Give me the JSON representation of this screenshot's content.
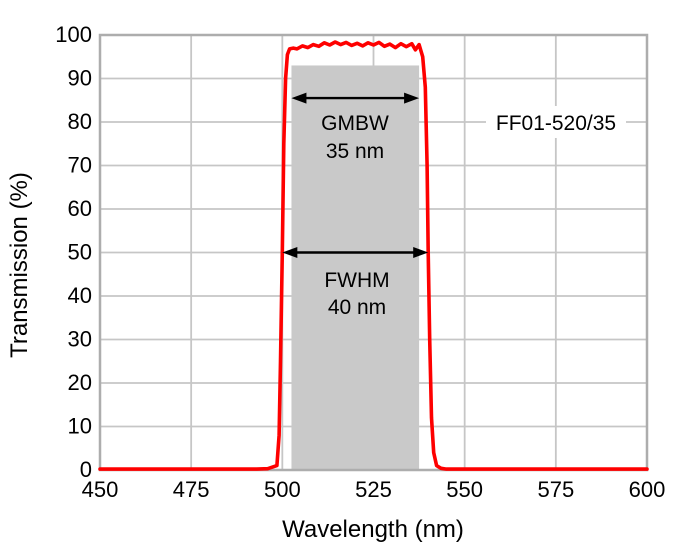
{
  "chart_data": {
    "type": "line",
    "title": "",
    "xlabel": "Wavelength (nm)",
    "ylabel": "Transmission (%)",
    "xlim": [
      450,
      600
    ],
    "ylim": [
      0,
      100
    ],
    "x_ticks": [
      450,
      475,
      500,
      525,
      550,
      575,
      600
    ],
    "y_ticks": [
      0,
      10,
      20,
      30,
      40,
      50,
      60,
      70,
      80,
      90,
      100
    ],
    "grid": true,
    "legend": "none",
    "colors": {
      "curve": "#fe0000",
      "band": "#c9c9c9",
      "grid": "#c6c6c6",
      "frame": "#adadad",
      "text": "#000000",
      "arrow": "#000000"
    },
    "series": [
      {
        "name": "FF01-520/35 transmission",
        "color": "#fe0000",
        "x": [
          450,
          470,
          485,
          493,
          496,
          498.5,
          499.1,
          499.5,
          500,
          500.4,
          500.9,
          501.4,
          502,
          503,
          504,
          505.5,
          507,
          508.5,
          510,
          511.5,
          513,
          514.5,
          516,
          517.5,
          519,
          520.5,
          522,
          523.5,
          525,
          526.5,
          528,
          529.5,
          531,
          532.5,
          534,
          535.5,
          536.5,
          537.5,
          538.5,
          539.2,
          539.7,
          540,
          540.4,
          540.9,
          541.5,
          542.3,
          543.5,
          545,
          550,
          560,
          580,
          600
        ],
        "y": [
          0.2,
          0.2,
          0.2,
          0.2,
          0.3,
          1,
          8,
          25,
          50,
          75,
          90,
          95.5,
          96.8,
          97.0,
          96.8,
          97.5,
          97.1,
          97.8,
          97.4,
          98.2,
          97.7,
          98.4,
          97.8,
          98.3,
          97.6,
          98.1,
          97.5,
          98.2,
          97.7,
          98.3,
          97.4,
          97.9,
          97.1,
          98.0,
          97.3,
          98.0,
          96.6,
          97.8,
          95,
          88,
          70,
          50,
          30,
          12,
          4,
          1,
          0.4,
          0.2,
          0.2,
          0.2,
          0.2,
          0.2
        ]
      }
    ],
    "shaded_region": {
      "meaning": "GMBW band",
      "x_start": 502.5,
      "x_end": 537.5,
      "y_start": 0,
      "y_end": 93,
      "color": "#c9c9c9"
    },
    "annotations": [
      {
        "type": "double_arrow",
        "label": "GMBW",
        "sublabel": "35 nm",
        "x_start": 502.5,
        "x_end": 537.5,
        "y": 85.5
      },
      {
        "type": "double_arrow",
        "label": "FWHM",
        "sublabel": "40 nm",
        "x_start": 500,
        "x_end": 540,
        "y": 50
      },
      {
        "type": "text",
        "label": "FF01-520/35",
        "x": 575,
        "y": 80
      }
    ]
  }
}
